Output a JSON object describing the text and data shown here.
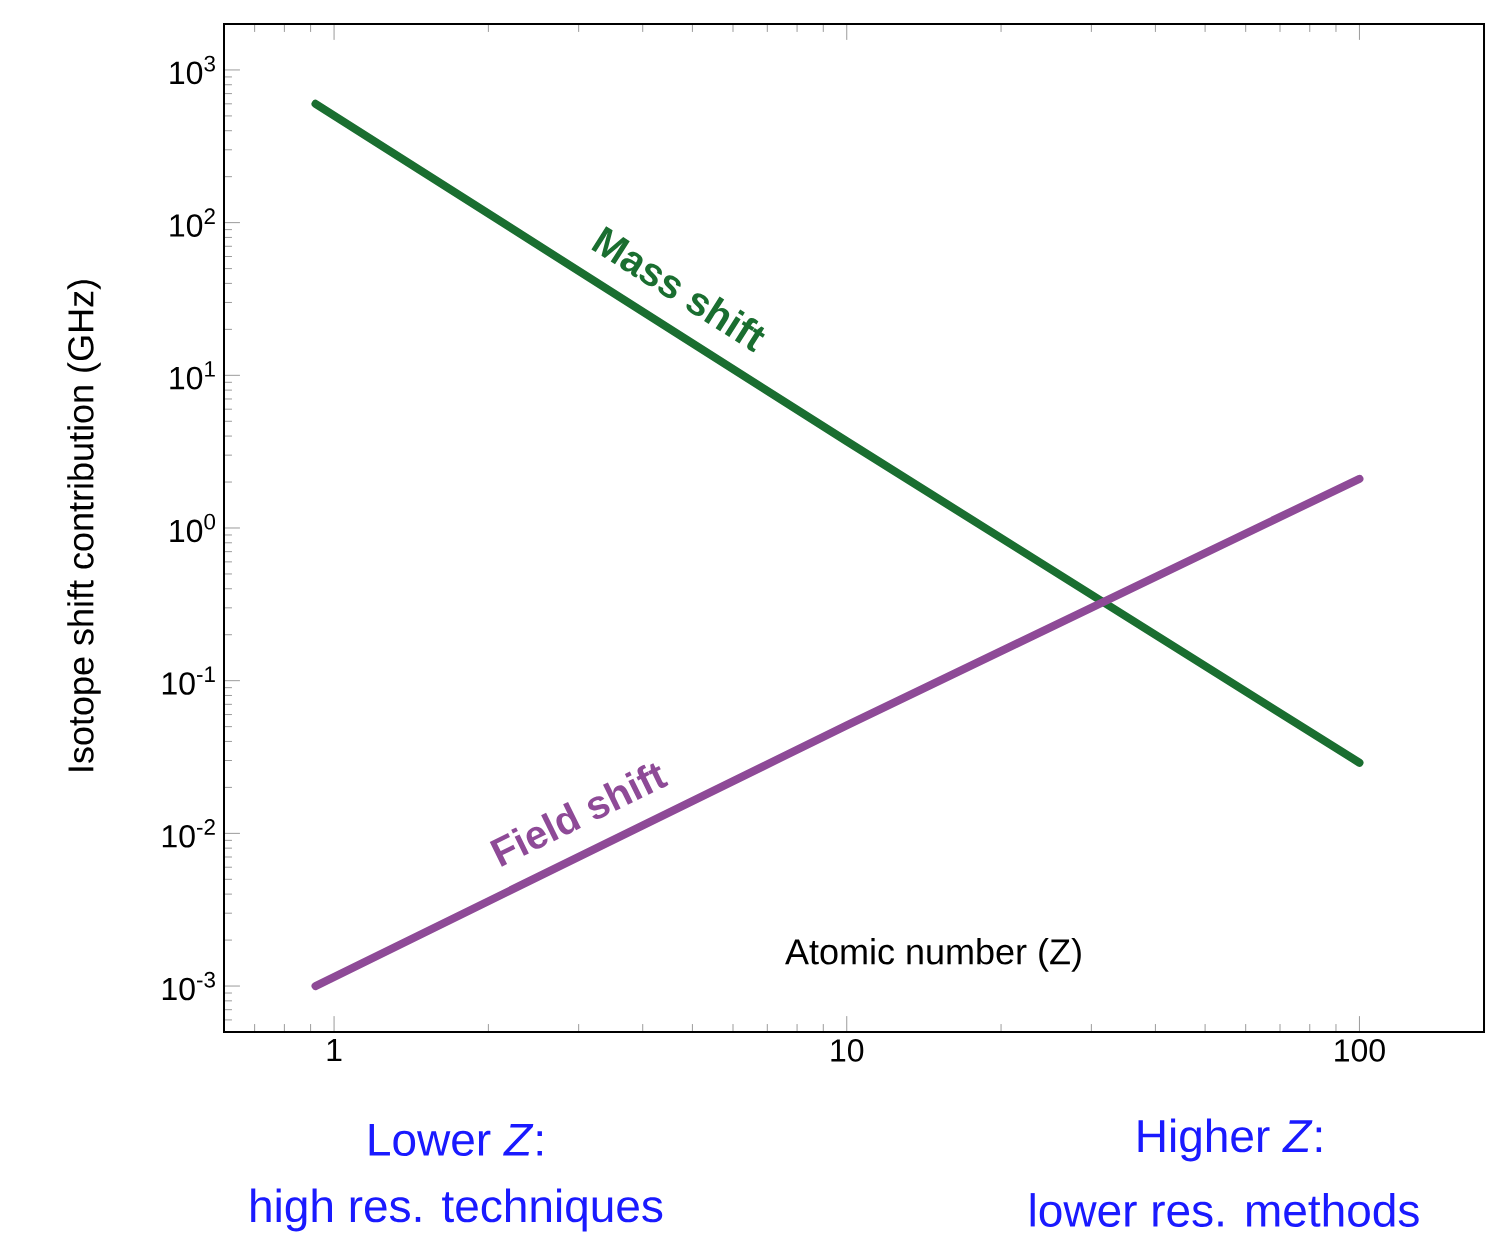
{
  "chart_data": {
    "type": "line",
    "ylabel": "Isotope shift contribution (GHz)",
    "xlabel": "Atomic number (Z)",
    "log": "xy",
    "xlim": [
      0.61,
      175
    ],
    "ylim": [
      0.0005,
      2000
    ],
    "xticks": [
      1,
      10,
      100
    ],
    "yticks": [
      {
        "value": 0.001,
        "label": "10$^{-3}$"
      },
      {
        "value": 0.01,
        "label": "10$^{-2}$"
      },
      {
        "value": 0.1,
        "label": "10$^{-1}$"
      },
      {
        "value": 1,
        "label": "10$^{0}$"
      },
      {
        "value": 10,
        "label": "10$^{1}$"
      },
      {
        "value": 100,
        "label": "10$^{2}$"
      },
      {
        "value": 1000,
        "label": "10$^{3}$"
      }
    ],
    "marker": "none",
    "line_style": "solid",
    "series": [
      {
        "name": "Mass shift",
        "color": "#1a6e30",
        "x": [
          0.92,
          10,
          100
        ],
        "values": [
          600,
          3.7,
          0.029
        ]
      },
      {
        "name": "Field shift",
        "color": "#8e4a97",
        "x": [
          0.92,
          10,
          100
        ],
        "values": [
          0.001,
          0.051,
          2.1
        ]
      }
    ],
    "annotations": [
      "Lower *Z*:",
      "high res. techniques",
      "Higher *Z*:",
      "lower res. methods"
    ]
  }
}
